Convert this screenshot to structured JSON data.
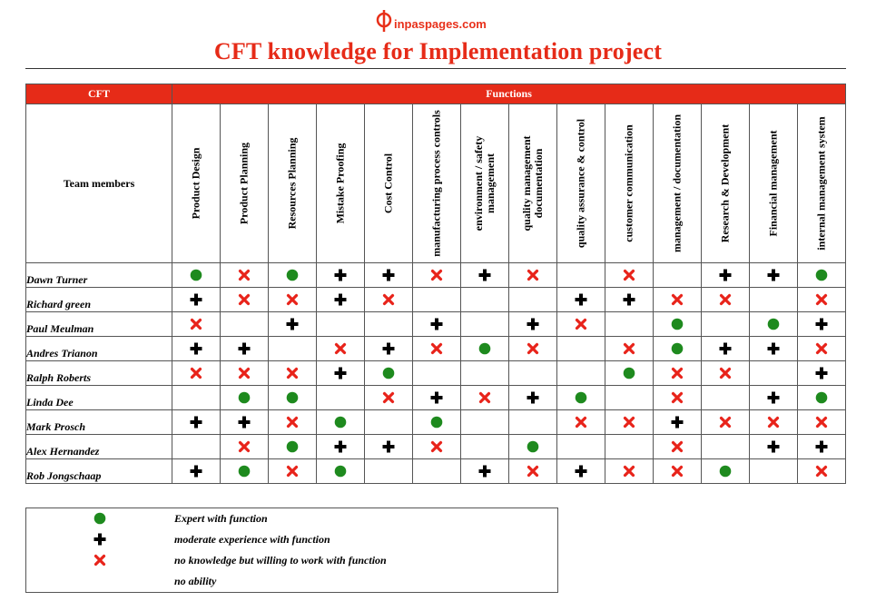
{
  "logo": {
    "text": "inpaspages.com"
  },
  "title": "CFT knowledge for Implementation project",
  "table": {
    "cft_header": "CFT",
    "functions_header": "Functions",
    "team_members_label": "Team members",
    "functions": [
      "Product Design",
      "Product Planning",
      "Resources Planning",
      "Mistake Proofing",
      "Cost Control",
      "manufacturing process controls",
      "environment / safety management",
      "quality management documentation",
      "quality assurance & control",
      "customer communication",
      "management / documentation",
      "Research & Development",
      "Financial management",
      "internal management system"
    ],
    "members": [
      {
        "name": "Dawn Turner",
        "cells": [
          "E",
          "N",
          "E",
          "M",
          "M",
          "N",
          "M",
          "N",
          "",
          "N",
          "",
          "M",
          "M",
          "E"
        ]
      },
      {
        "name": "Richard green",
        "cells": [
          "M",
          "N",
          "N",
          "M",
          "N",
          "",
          "",
          "",
          "M",
          "M",
          "N",
          "N",
          "",
          "N"
        ]
      },
      {
        "name": "Paul Meulman",
        "cells": [
          "N",
          "",
          "M",
          "",
          "",
          "M",
          "",
          "M",
          "N",
          "",
          "E",
          "",
          "E",
          "M"
        ]
      },
      {
        "name": "Andres Trianon",
        "cells": [
          "M",
          "M",
          "",
          "N",
          "M",
          "N",
          "E",
          "N",
          "",
          "N",
          "E",
          "M",
          "M",
          "N"
        ]
      },
      {
        "name": "Ralph Roberts",
        "cells": [
          "N",
          "N",
          "N",
          "M",
          "E",
          "",
          "",
          "",
          "",
          "E",
          "N",
          "N",
          "",
          "M"
        ]
      },
      {
        "name": "Linda Dee",
        "cells": [
          "",
          "E",
          "E",
          "",
          "N",
          "M",
          "N",
          "M",
          "E",
          "",
          "N",
          "",
          "M",
          "E"
        ]
      },
      {
        "name": "Mark Prosch",
        "cells": [
          "M",
          "M",
          "N",
          "E",
          "",
          "E",
          "",
          "",
          "N",
          "N",
          "M",
          "N",
          "N",
          "N"
        ]
      },
      {
        "name": "Alex Hernandez",
        "cells": [
          "",
          "N",
          "E",
          "M",
          "M",
          "N",
          "",
          "E",
          "",
          "",
          "N",
          "",
          "M",
          "M"
        ]
      },
      {
        "name": "Rob Jongschaap",
        "cells": [
          "M",
          "E",
          "N",
          "E",
          "",
          "",
          "M",
          "N",
          "M",
          "N",
          "N",
          "E",
          "",
          "N"
        ]
      }
    ]
  },
  "legend": [
    {
      "icon": "green-circle-icon",
      "text": "Expert with function"
    },
    {
      "icon": "black-plus-icon",
      "text": "moderate experience with function"
    },
    {
      "icon": "red-x-icon",
      "text": "no knowledge but willing to work with function"
    },
    {
      "icon": "",
      "text": "no ability"
    }
  ],
  "colors": {
    "header_red": "#e62b18",
    "expert_green": "#1e8a1e",
    "moderate_black": "#000000",
    "willing_red": "#e8231a"
  }
}
